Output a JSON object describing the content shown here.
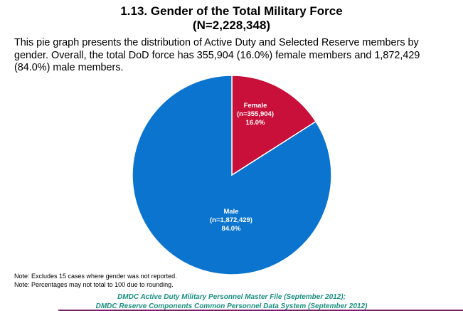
{
  "title": {
    "line1": "1.13. Gender of the Total Military Force",
    "line2": "(N=2,228,348)"
  },
  "description": "This pie graph presents the distribution of Active Duty and Selected Reserve members by gender. Overall, the total DoD force has 355,904 (16.0%) female members and 1,872,429 (84.0%) male members.",
  "chart_data": {
    "type": "pie",
    "title": "1.13. Gender of the Total Military Force",
    "subtitle": "(N=2,228,348)",
    "slices": [
      {
        "label": "Female",
        "count_text": "(n=355,904)",
        "percent_text": "16.0%",
        "value": 355904,
        "percent": 16.0,
        "color": "#c8103a"
      },
      {
        "label": "Male",
        "count_text": "(n=1,872,429)",
        "percent_text": "84.0%",
        "value": 1872429,
        "percent": 84.0,
        "color": "#0a74cf"
      }
    ],
    "start": "12 o'clock",
    "direction": "clockwise",
    "edge_color": "#ffffff"
  },
  "notes": [
    "Note:  Excludes 15 cases where gender was not reported.",
    "Note:  Percentages may not total to 100 due to rounding."
  ],
  "sources": [
    "DMDC Active Duty Military Personnel Master File (September 2012);",
    "DMDC Reserve Components Common Personnel Data System (September 2012)"
  ],
  "colors": {
    "female": "#c8103a",
    "male": "#0a74cf",
    "source_text": "#1a8f80",
    "bottom_rule": "#7b1e6e"
  }
}
